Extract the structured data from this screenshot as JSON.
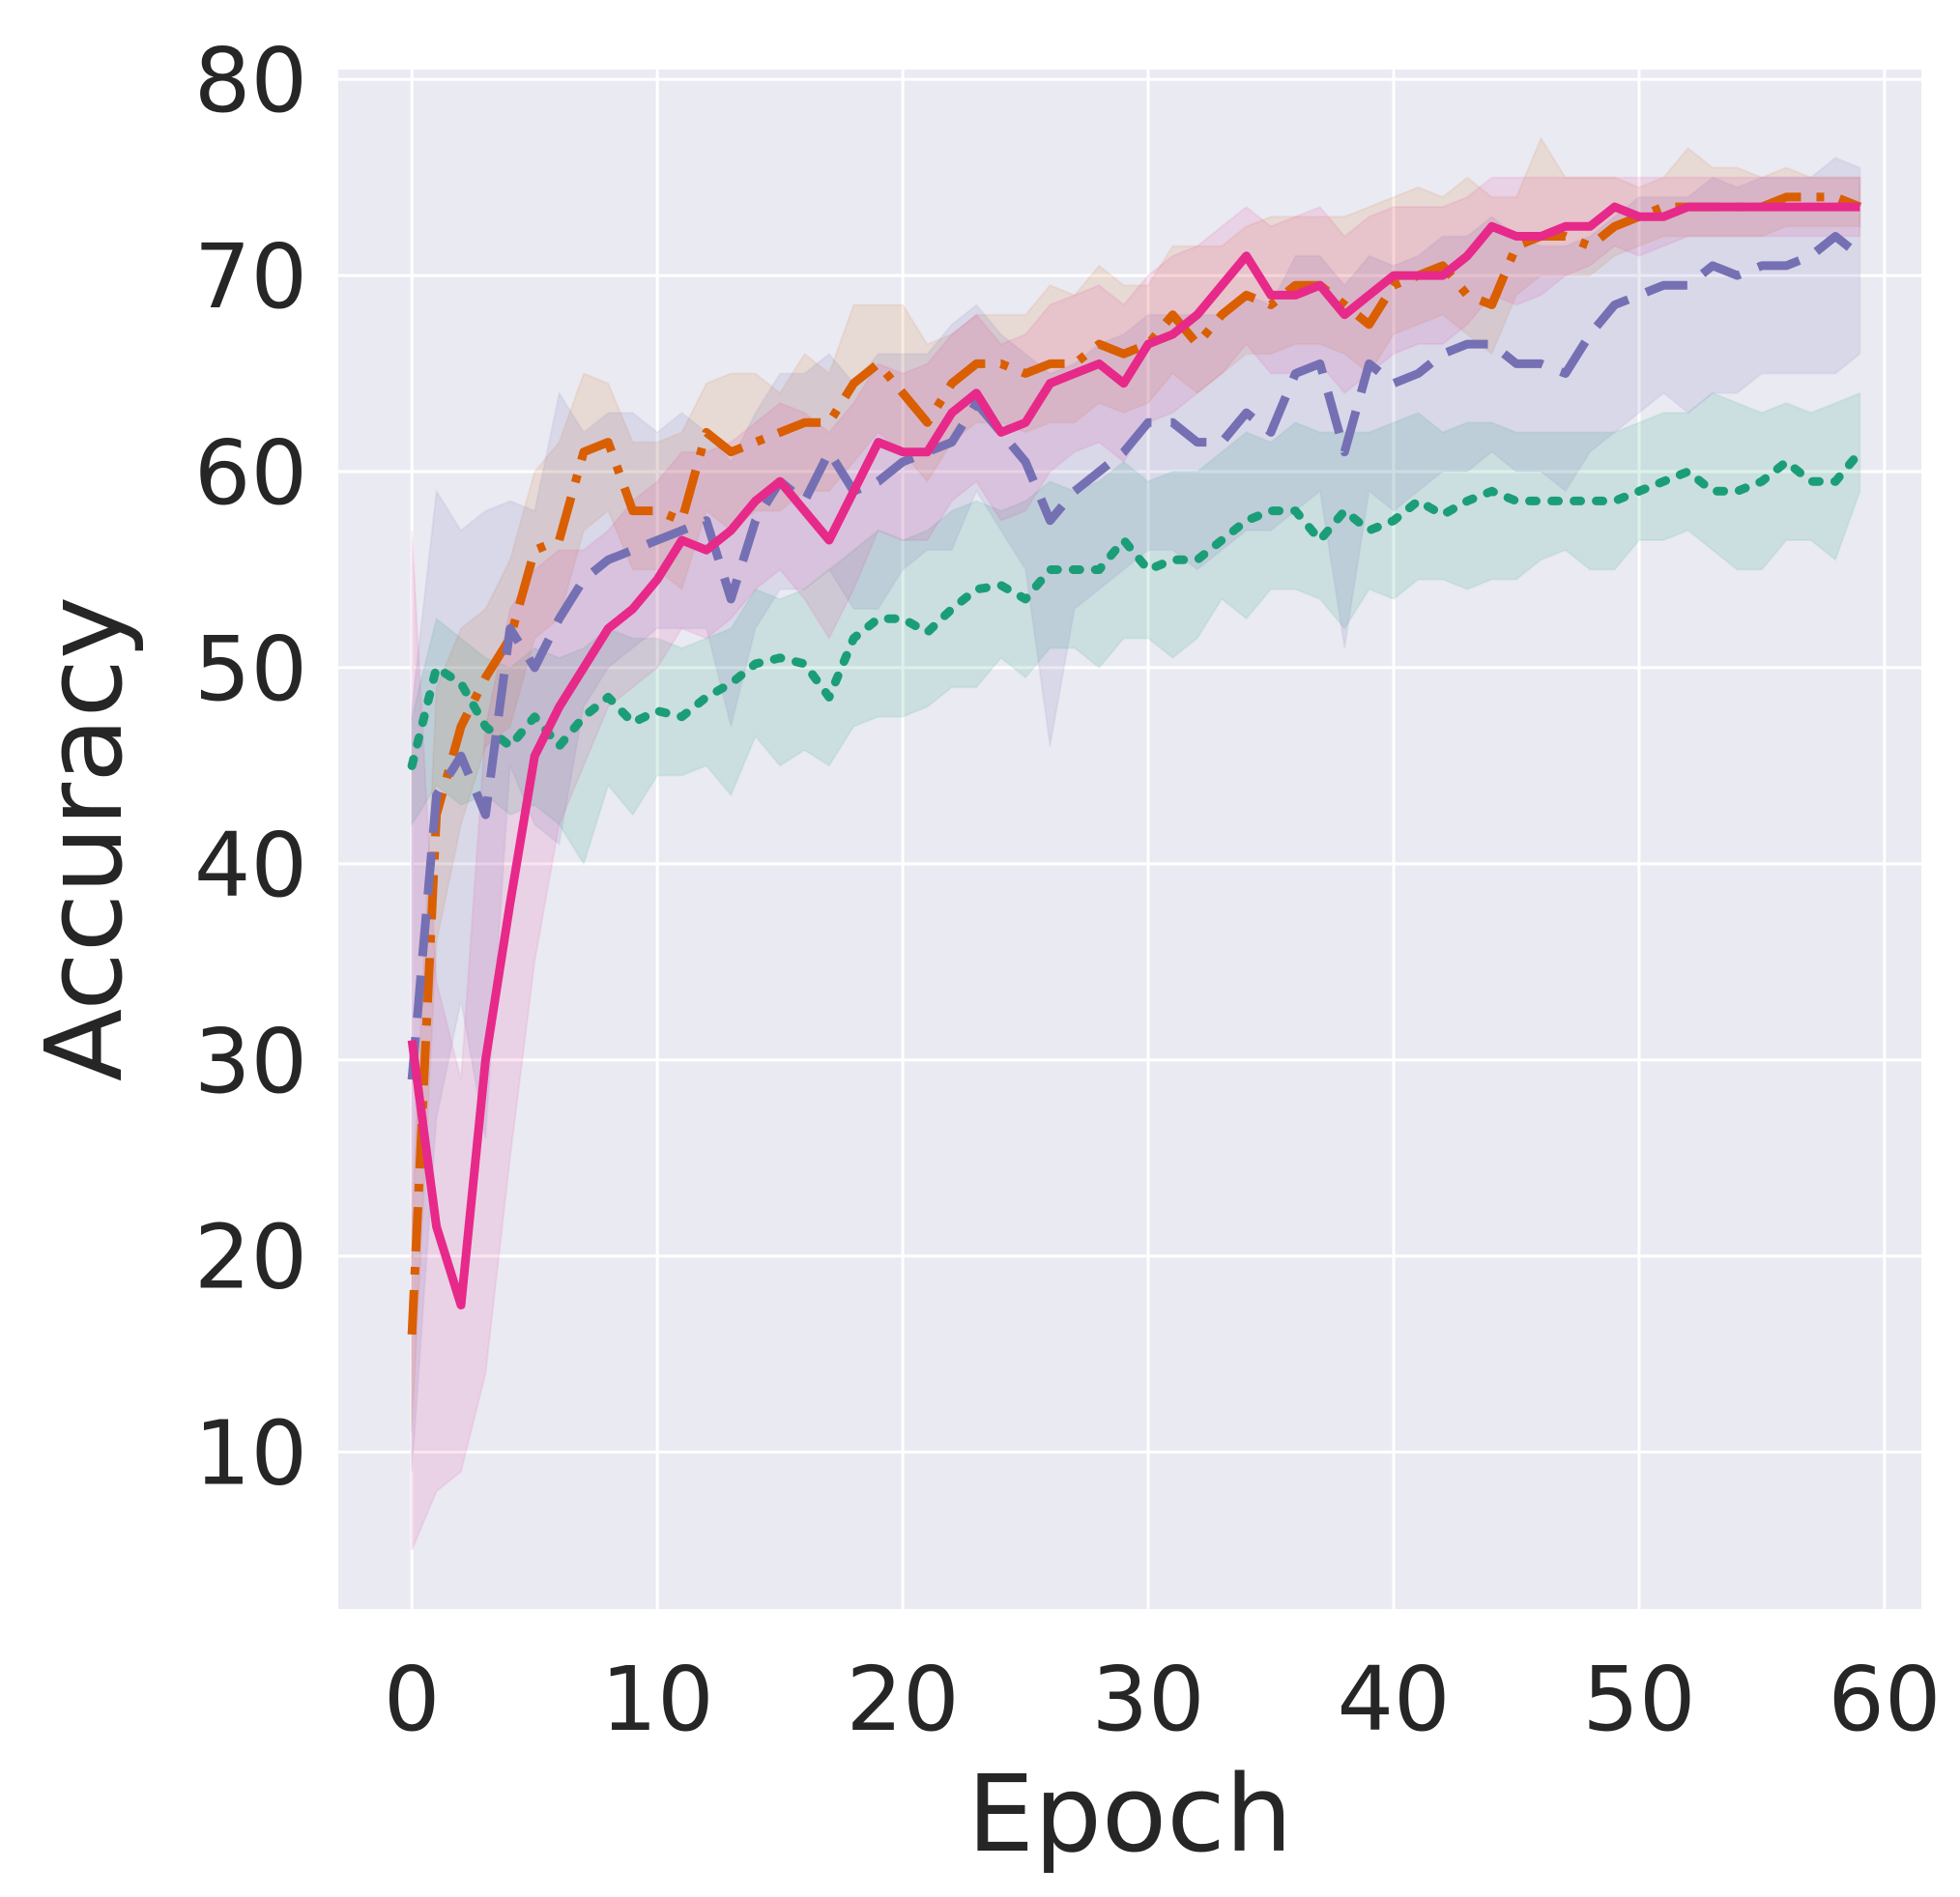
{
  "chart_data": {
    "type": "line",
    "xlabel": "Epoch",
    "ylabel": "Accuracy",
    "xlim": [
      -3,
      61.5
    ],
    "ylim": [
      2,
      80.5
    ],
    "xticks": [
      0,
      10,
      20,
      30,
      40,
      50,
      60
    ],
    "yticks": [
      10,
      20,
      30,
      40,
      50,
      60,
      70,
      80
    ],
    "grid": true,
    "background": "#eaeaf2",
    "series": [
      {
        "color": "#1b9e77",
        "dash": "dotted",
        "band_opacity": 0.15,
        "x": [
          0,
          1,
          2,
          3,
          4,
          5,
          6,
          7,
          8,
          9,
          10,
          11,
          12,
          13,
          14,
          15,
          16,
          17,
          18,
          19,
          20,
          21,
          22,
          23,
          24,
          25,
          26,
          27,
          28,
          29,
          30,
          31,
          32,
          33,
          34,
          35,
          36,
          37,
          38,
          39,
          40,
          41,
          42,
          43,
          44,
          45,
          46,
          47,
          48,
          49,
          50,
          51,
          52,
          53,
          54,
          55,
          56,
          57,
          58,
          59
        ],
        "values": [
          45,
          50,
          49.2,
          47,
          46,
          47.5,
          46,
          47.5,
          48.5,
          47.2,
          47.8,
          47.5,
          48.5,
          49.2,
          50.2,
          50.5,
          50.2,
          48.5,
          51.5,
          52.5,
          52.5,
          51.8,
          53,
          54,
          54.2,
          53.5,
          55,
          55,
          55,
          56.5,
          55,
          55.5,
          55.5,
          56.5,
          57.5,
          58,
          58,
          56.5,
          58,
          57,
          57.5,
          58.5,
          57.8,
          58.5,
          59,
          58.5,
          58.5,
          58.5,
          58.5,
          58.5,
          59,
          59.5,
          60,
          59,
          59,
          59.5,
          60.5,
          59.5,
          59.5,
          61
        ],
        "lower": [
          42,
          44,
          43,
          43.5,
          42.5,
          43,
          42,
          40,
          44,
          42.5,
          44.5,
          44.5,
          45,
          43.5,
          46.5,
          45,
          45.8,
          45,
          47,
          47.5,
          47.5,
          48,
          49,
          49,
          50.5,
          49.5,
          51,
          51,
          50,
          51.5,
          51.5,
          50.5,
          51.5,
          53.5,
          52.5,
          54,
          54,
          53.5,
          52,
          54,
          53.5,
          54.5,
          54.5,
          54,
          54.5,
          54.5,
          55.5,
          56,
          55,
          55,
          56.5,
          56.5,
          57,
          56,
          55,
          55,
          56.5,
          56.5,
          55.5,
          59
        ],
        "upper": [
          47.5,
          52.5,
          51.5,
          50.5,
          50,
          51,
          50.5,
          51,
          52,
          51.5,
          51.5,
          51,
          51.5,
          52,
          54,
          53.5,
          54,
          55,
          56,
          57,
          56.5,
          57,
          58,
          58.5,
          58,
          58.5,
          59.5,
          59,
          59.5,
          60.5,
          59.5,
          60,
          60,
          61,
          62,
          61.5,
          62.5,
          62,
          62,
          62,
          62.5,
          63,
          62,
          62.5,
          62.5,
          62,
          62,
          62,
          62,
          62,
          62.5,
          63,
          63,
          64,
          63.5,
          63,
          63.5,
          63,
          63.5,
          64
        ]
      },
      {
        "color": "#d95f02",
        "dash": "dashdot",
        "band_opacity": 0.12,
        "x": [
          0,
          1,
          2,
          3,
          4,
          5,
          6,
          7,
          8,
          9,
          10,
          11,
          12,
          13,
          14,
          15,
          16,
          17,
          18,
          19,
          20,
          21,
          22,
          23,
          24,
          25,
          26,
          27,
          28,
          29,
          30,
          31,
          32,
          33,
          34,
          35,
          36,
          37,
          38,
          39,
          40,
          41,
          42,
          43,
          44,
          45,
          46,
          47,
          48,
          49,
          50,
          51,
          52,
          53,
          54,
          55,
          56,
          57,
          58,
          59
        ],
        "values": [
          16,
          42.5,
          47,
          49.5,
          51.5,
          56,
          56.5,
          61,
          61.5,
          58,
          58,
          57.5,
          62,
          61,
          61.5,
          62,
          62.5,
          62.5,
          64.5,
          65.5,
          64,
          62.5,
          64.5,
          65.5,
          65.5,
          65,
          65.5,
          65.5,
          66.5,
          66,
          66.5,
          68,
          66.5,
          68,
          69,
          68.5,
          69.5,
          69.5,
          68.5,
          67.5,
          69.5,
          70,
          70.5,
          69,
          68.5,
          71.5,
          72,
          72,
          71.5,
          72.5,
          73,
          73.5,
          73.5,
          73.5,
          73.5,
          73.5,
          74,
          74,
          74,
          73.5
        ],
        "lower": [
          11,
          36,
          42,
          46,
          47,
          51.5,
          52.5,
          57,
          58,
          55,
          55,
          54,
          58,
          57,
          58,
          58,
          59,
          59,
          60.5,
          62,
          61,
          59.5,
          61.5,
          62.5,
          62.5,
          62,
          62.5,
          62.5,
          63.5,
          63,
          63.5,
          65,
          64,
          65,
          66,
          66,
          66.5,
          66.5,
          66,
          65,
          67,
          67.5,
          68,
          67,
          66,
          69,
          70,
          70,
          70,
          71,
          71.5,
          72,
          72,
          72,
          72,
          72,
          72.5,
          72.5,
          72.5,
          72.5
        ],
        "upper": [
          22,
          49,
          52,
          53,
          55.5,
          60,
          61.5,
          65,
          64.5,
          61.5,
          61.5,
          62,
          64.5,
          65,
          65,
          64,
          66,
          65,
          68.5,
          68.5,
          68.5,
          66.5,
          67,
          68,
          68,
          68,
          69.5,
          69,
          70.5,
          69.5,
          69.5,
          71.5,
          71.5,
          71.5,
          72.5,
          73,
          73,
          73,
          73,
          73.5,
          74,
          74.5,
          74,
          75,
          74,
          74,
          77,
          75,
          75,
          75,
          74.5,
          75,
          76.5,
          75.5,
          75.5,
          75,
          75.5,
          75,
          75,
          75
        ]
      },
      {
        "color": "#7570b3",
        "dash": "dashed",
        "band_opacity": 0.15,
        "x": [
          0,
          1,
          2,
          3,
          4,
          5,
          6,
          7,
          8,
          9,
          10,
          11,
          12,
          13,
          14,
          15,
          16,
          17,
          18,
          19,
          20,
          21,
          22,
          23,
          24,
          25,
          26,
          27,
          28,
          29,
          30,
          31,
          32,
          33,
          34,
          35,
          36,
          37,
          38,
          39,
          40,
          41,
          42,
          43,
          44,
          45,
          46,
          47,
          48,
          49,
          50,
          51,
          52,
          53,
          54,
          55,
          56,
          57,
          58,
          59
        ],
        "values": [
          29,
          43.5,
          45.5,
          42.5,
          52,
          50,
          52.5,
          54.5,
          55.5,
          56,
          56.5,
          57,
          57.5,
          53.5,
          57.5,
          59.5,
          58.5,
          61,
          59,
          59.5,
          60.5,
          61,
          61.5,
          63.5,
          62,
          60.5,
          57.5,
          59,
          60,
          61,
          62.5,
          62.5,
          61.5,
          61.5,
          63,
          62,
          65,
          65.5,
          61,
          65.5,
          64.5,
          65,
          66,
          66.5,
          66.5,
          65.5,
          65.5,
          65,
          67,
          68.5,
          69,
          69.5,
          69.5,
          70.5,
          70,
          70.5,
          70.5,
          71,
          72,
          71
        ],
        "lower": [
          9,
          27,
          33,
          26,
          45,
          42,
          41,
          48,
          50,
          51,
          52,
          52,
          52,
          47,
          52,
          54,
          54,
          55,
          53,
          53,
          55,
          56,
          56,
          59,
          57,
          55,
          46,
          53,
          54,
          55,
          56,
          56,
          55,
          56,
          57,
          57,
          58,
          59,
          51,
          59,
          58,
          59,
          60,
          60,
          61,
          60,
          60,
          59,
          61,
          62,
          63,
          64,
          63,
          64,
          64,
          65,
          65,
          65,
          65,
          66
        ],
        "upper": [
          48,
          59,
          57,
          58,
          58.5,
          58,
          64,
          62,
          63,
          63,
          62,
          63,
          62,
          60.5,
          63,
          65,
          65,
          66,
          64.5,
          66,
          66,
          66,
          67.5,
          68.5,
          67,
          66,
          65,
          65.5,
          66.5,
          67,
          68,
          68,
          68,
          68,
          69,
          68.5,
          71,
          71,
          69.5,
          71,
          70.5,
          71,
          72,
          72,
          73,
          72,
          71.5,
          71.5,
          72,
          73,
          74,
          74,
          74,
          75,
          74.5,
          75,
          75,
          75,
          76,
          75.5
        ]
      },
      {
        "color": "#e7298a",
        "dash": "solid",
        "band_opacity": 0.12,
        "x": [
          0,
          1,
          2,
          3,
          4,
          5,
          6,
          7,
          8,
          9,
          10,
          11,
          12,
          13,
          14,
          15,
          16,
          17,
          18,
          19,
          20,
          21,
          22,
          23,
          24,
          25,
          26,
          27,
          28,
          29,
          30,
          31,
          32,
          33,
          34,
          35,
          36,
          37,
          38,
          39,
          40,
          41,
          42,
          43,
          44,
          45,
          46,
          47,
          48,
          49,
          50,
          51,
          52,
          53,
          54,
          55,
          56,
          57,
          58,
          59
        ],
        "values": [
          31,
          21.5,
          17.5,
          30,
          38,
          45.5,
          48,
          50,
          52,
          53,
          54.5,
          56.5,
          56,
          57,
          58.5,
          59.5,
          58,
          56.5,
          59,
          61.5,
          61,
          61,
          63,
          64,
          62,
          62.5,
          64.5,
          65,
          65.5,
          64.5,
          66.5,
          67,
          68,
          69.5,
          71,
          69,
          69,
          69.5,
          68,
          69,
          70,
          70,
          70,
          71,
          72.5,
          72,
          72,
          72.5,
          72.5,
          73.5,
          73,
          73,
          73.5,
          73.5,
          73.5,
          73.5,
          73.5,
          73.5,
          73.5,
          73.5
        ],
        "lower": [
          5,
          8,
          9,
          14,
          25,
          35,
          42,
          45,
          48,
          49,
          50,
          52,
          51.5,
          52.5,
          54,
          55,
          53.5,
          51.5,
          54,
          57,
          56.5,
          56.5,
          58.5,
          59.5,
          57.5,
          58,
          60,
          61,
          61.5,
          60.5,
          62.5,
          63,
          64,
          65,
          66.5,
          65,
          65,
          65.5,
          64,
          65,
          66,
          66.5,
          66.5,
          67.5,
          69,
          68.5,
          69,
          70,
          70.5,
          71.5,
          71,
          71.5,
          72,
          72,
          72,
          72,
          72,
          72,
          72,
          72
        ],
        "upper": [
          57,
          34,
          29,
          47,
          53,
          55,
          56,
          56,
          57,
          58.5,
          59.5,
          61,
          61,
          61.5,
          62.5,
          63.5,
          63,
          62,
          63.5,
          65.5,
          65,
          65.5,
          67,
          68,
          66.5,
          67,
          68.5,
          69,
          69.5,
          68.5,
          70,
          71,
          71.5,
          72.5,
          73.5,
          72.5,
          73,
          73.5,
          72,
          73,
          73.5,
          73.5,
          73.5,
          74,
          75,
          75,
          75,
          75,
          75,
          75,
          75,
          75,
          75,
          75,
          75,
          75,
          75,
          75,
          75,
          75
        ]
      }
    ]
  }
}
